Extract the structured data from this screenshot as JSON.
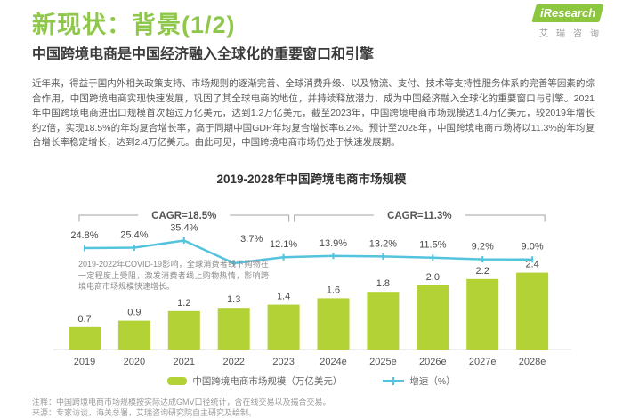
{
  "header": {
    "title": "新现状：背景(1/2)",
    "title_color": "#8fc74a",
    "logo_text": "iResearch",
    "logo_sub": "艾瑞咨询",
    "logo_color": "#8dc63f"
  },
  "subtitle": "中国跨境电商是中国经济融入全球化的重要窗口和引擎",
  "body_paragraph": "近年来，得益于国内外相关政策支持、市场规则的逐渐完善、全球消费升级、以及物流、支付、技术等支持性服务体系的完善等因素的综合作用，中国跨境电商实现快速发展，巩固了其全球电商的地位，并持续释放潜力，成为中国经济融入全球化的重要窗口与引擎。2021年中国跨境电商进出口规模首次超过万亿美元，达到1.2万亿美元，截至2023年，中国跨境电商市场规模达1.4万亿美元，较2019年增长约2倍，实现18.5%的年均复合增长率，高于同期中国GDP年均复合增长率6.2%。预计至2028年，中国跨境电商市场将以11.3%的年均复合增长率稳定增长，达到2.4万亿美元。由此可见，中国跨境电商市场仍处于快速发展期。",
  "chart_data": {
    "type": "bar",
    "title": "2019-2028年中国跨境电商市场规模",
    "categories": [
      "2019",
      "2020",
      "2021",
      "2022",
      "2023",
      "2024e",
      "2025e",
      "2026e",
      "2027e",
      "2028e"
    ],
    "series": [
      {
        "name": "中国跨境电商市场规模（万亿美元）",
        "chart": "bar",
        "unit": "万亿美元",
        "color": "#b2d235",
        "values": [
          0.7,
          0.9,
          1.2,
          1.3,
          1.4,
          1.6,
          1.8,
          2.0,
          2.2,
          2.4
        ]
      },
      {
        "name": "增速（%）",
        "chart": "line",
        "unit": "%",
        "color": "#53c3de",
        "values": [
          24.8,
          25.4,
          35.4,
          3.7,
          12.1,
          13.9,
          13.2,
          11.5,
          9.2,
          9.0
        ]
      }
    ],
    "cagr_brackets": [
      {
        "label": "CAGR=18.5%",
        "from": "2019",
        "to": "2023"
      },
      {
        "label": "CAGR=11.3%",
        "from": "2023",
        "to": "2028e"
      }
    ],
    "annotation": "2019-2022年COVID-19影响，全球消费者线下购物在一定程度上受阻，激发消费者线上购物热情，影响跨境电商市场规模快速增长。",
    "legend_position": "bottom",
    "ylim_bar": [
      0,
      2.6
    ],
    "grid": false
  },
  "footnotes": [
    "注释：中国跨境电商市场规模按实际达成GMV口径统计，含在线交易以及撮合交易。",
    "来源：专家访谈，海关总署，艾瑞咨询研究院自主研究及绘制。"
  ]
}
